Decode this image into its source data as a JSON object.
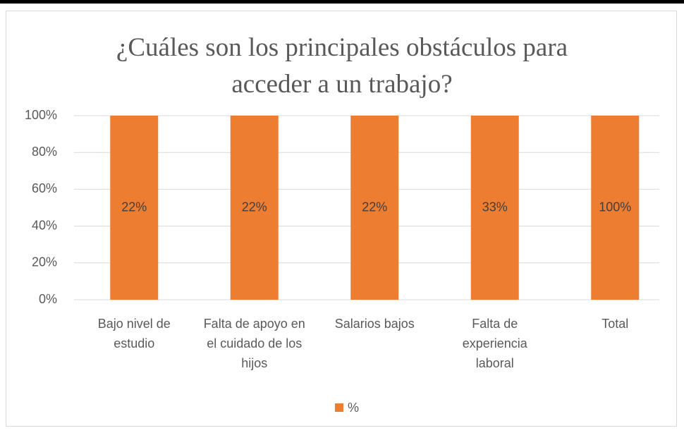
{
  "chart_data": {
    "type": "stacked100",
    "title": "¿Cuáles son los principales obstáculos para acceder a un trabajo?",
    "categories": [
      "Bajo nivel de estudio",
      "Falta de apoyo en el cuidado de los hijos",
      "Salarios bajos",
      "Falta de experiencia laboral",
      "Total"
    ],
    "series": [
      {
        "name": "%",
        "color": "#ed7d31",
        "values": [
          22,
          22,
          22,
          33,
          100
        ],
        "value_labels": [
          "22%",
          "22%",
          "22%",
          "33%",
          "100%"
        ]
      }
    ],
    "ylim": [
      0,
      100
    ],
    "yticks": [
      {
        "value": 0,
        "label": "0%"
      },
      {
        "value": 20,
        "label": "20%"
      },
      {
        "value": 40,
        "label": "40%"
      },
      {
        "value": 60,
        "label": "60%"
      },
      {
        "value": 80,
        "label": "80%"
      },
      {
        "value": 100,
        "label": "100%"
      }
    ],
    "grid": true,
    "legend": "bottom"
  }
}
